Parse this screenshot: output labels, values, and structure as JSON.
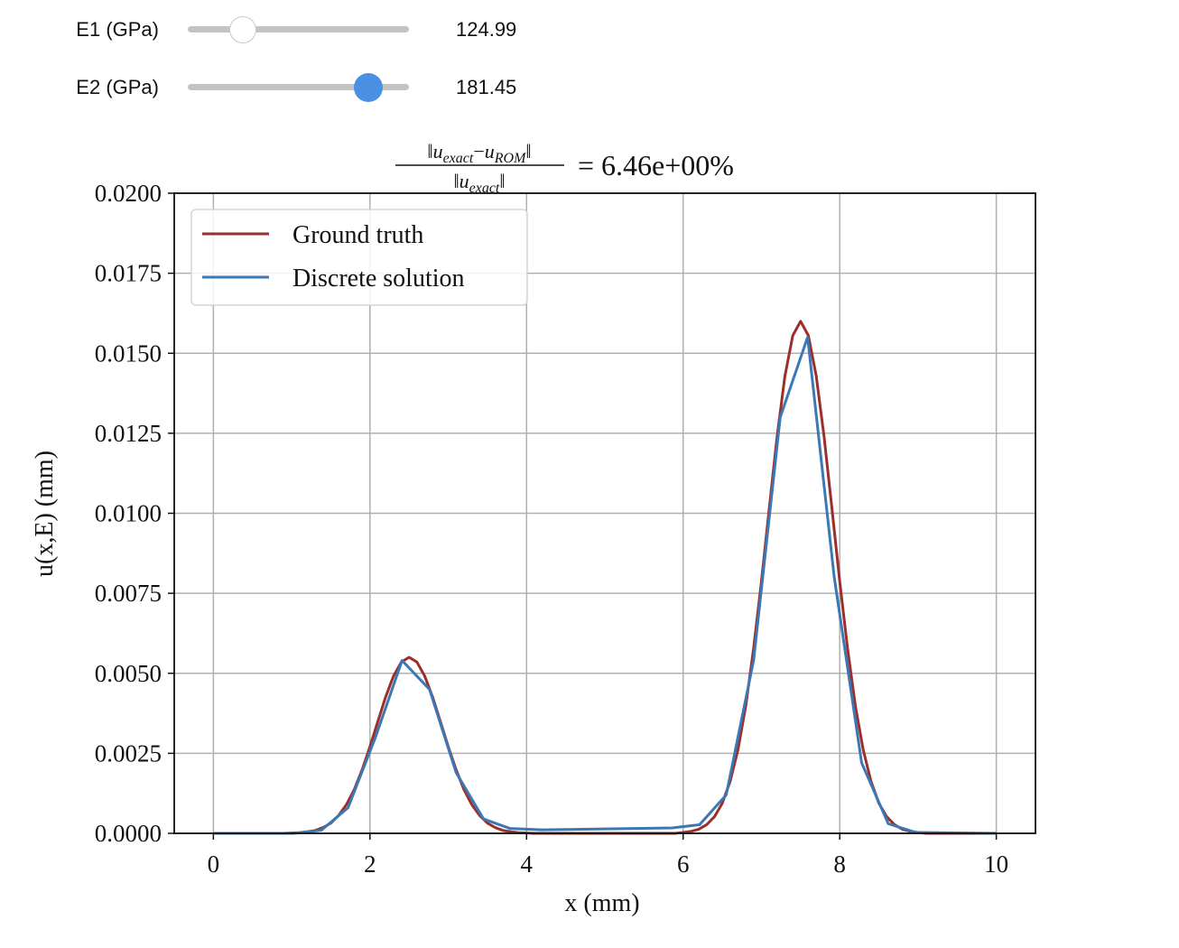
{
  "controls": [
    {
      "label": "E1 (GPa)",
      "value": 124.99,
      "min": 100,
      "max": 200
    },
    {
      "label": "E2 (GPa)",
      "value": 181.45,
      "min": 100,
      "max": 200
    }
  ],
  "chart_data": {
    "type": "line",
    "title": {
      "numerator": [
        [
          "u",
          "exact"
        ],
        [
          "u",
          "ROM"
        ]
      ],
      "denominator": [
        [
          "u",
          "exact"
        ]
      ],
      "value": "6.46e+00%"
    },
    "x_label": "x (mm)",
    "y_label": "u(x,E) (mm)",
    "xlim": [
      -0.5,
      10.5
    ],
    "ylim": [
      0,
      0.02
    ],
    "xticks": [
      0,
      2,
      4,
      6,
      8,
      10
    ],
    "yticks": [
      {
        "value": 0,
        "label": "0.0000"
      },
      {
        "value": 0.0025,
        "label": "0.0025"
      },
      {
        "value": 0.005,
        "label": "0.0050"
      },
      {
        "value": 0.0075,
        "label": "0.0075"
      },
      {
        "value": 0.01,
        "label": "0.0100"
      },
      {
        "value": 0.0125,
        "label": "0.0125"
      },
      {
        "value": 0.015,
        "label": "0.0150"
      },
      {
        "value": 0.0175,
        "label": "0.0175"
      },
      {
        "value": 0.02,
        "label": "0.0200"
      }
    ],
    "grid": true,
    "legend": "upper left",
    "series": [
      {
        "name": "Ground truth",
        "color": "#9a2f2b",
        "x": [
          0,
          0.1,
          0.2,
          0.3,
          0.4,
          0.5,
          0.6,
          0.7,
          0.8,
          0.9,
          1,
          1.1,
          1.2,
          1.3,
          1.4,
          1.5,
          1.6,
          1.7,
          1.8,
          1.9,
          2,
          2.1,
          2.2,
          2.3,
          2.4,
          2.5,
          2.6,
          2.7,
          2.8,
          2.9,
          3,
          3.1,
          3.2,
          3.3,
          3.4,
          3.5,
          3.6,
          3.7,
          3.8,
          3.9,
          4,
          4.1,
          4.2,
          4.3,
          4.4,
          4.5,
          4.6,
          4.7,
          4.8,
          4.9,
          5,
          5.1,
          5.2,
          5.3,
          5.4,
          5.5,
          5.6,
          5.7,
          5.8,
          5.9,
          6,
          6.1,
          6.2,
          6.3,
          6.4,
          6.5,
          6.6,
          6.7,
          6.8,
          6.9,
          7,
          7.1,
          7.2,
          7.3,
          7.4,
          7.5,
          7.6,
          7.7,
          7.8,
          7.9,
          8,
          8.1,
          8.2,
          8.3,
          8.4,
          8.5,
          8.6,
          8.7,
          8.8,
          8.9,
          9,
          9.1,
          9.2,
          9.3,
          9.4,
          9.5,
          9.6,
          9.7,
          9.8,
          9.9,
          10
        ],
        "values": [
          0,
          0,
          0,
          0,
          0,
          0,
          0,
          0,
          0,
          0,
          1e-05,
          2e-05,
          5e-05,
          9e-05,
          0.00018,
          0.00032,
          0.00056,
          0.0009,
          0.00137,
          0.00199,
          0.00271,
          0.00349,
          0.00426,
          0.00491,
          0.00535,
          0.0055,
          0.00535,
          0.00491,
          0.00426,
          0.00349,
          0.00271,
          0.00199,
          0.00137,
          0.0009,
          0.00056,
          0.00032,
          0.00018,
          9e-05,
          5e-05,
          2e-05,
          1e-05,
          0,
          0,
          0,
          0,
          0,
          0,
          0,
          0,
          0,
          0,
          0,
          0,
          0,
          0,
          0,
          0,
          0,
          0,
          0,
          3e-05,
          6e-05,
          0.00013,
          0.00027,
          0.00052,
          0.00094,
          0.00162,
          0.00261,
          0.00398,
          0.00578,
          0.00787,
          0.01016,
          0.0124,
          0.01429,
          0.01555,
          0.016,
          0.01555,
          0.01429,
          0.0124,
          0.01016,
          0.00787,
          0.00578,
          0.00398,
          0.00261,
          0.00162,
          0.00094,
          0.00052,
          0.00027,
          0.00013,
          6e-05,
          3e-05,
          0,
          0,
          0,
          0,
          0,
          0,
          0,
          0,
          0,
          0
        ]
      },
      {
        "name": "Discrete solution",
        "color": "#3b78b5",
        "x": [
          0,
          1.03,
          1.38,
          1.72,
          2.07,
          2.41,
          2.76,
          3.1,
          3.45,
          3.79,
          4.2,
          5.86,
          6.21,
          6.55,
          6.9,
          7.24,
          7.59,
          7.93,
          8.28,
          8.62,
          8.97,
          10
        ],
        "values": [
          0,
          0,
          0.0001,
          0.0008,
          0.003,
          0.0054,
          0.0045,
          0.0019,
          0.00045,
          0.00015,
          0.00011,
          0.00017,
          0.00027,
          0.0012,
          0.0054,
          0.013,
          0.0155,
          0.008,
          0.0022,
          0.0003,
          3e-05,
          0
        ]
      }
    ]
  }
}
